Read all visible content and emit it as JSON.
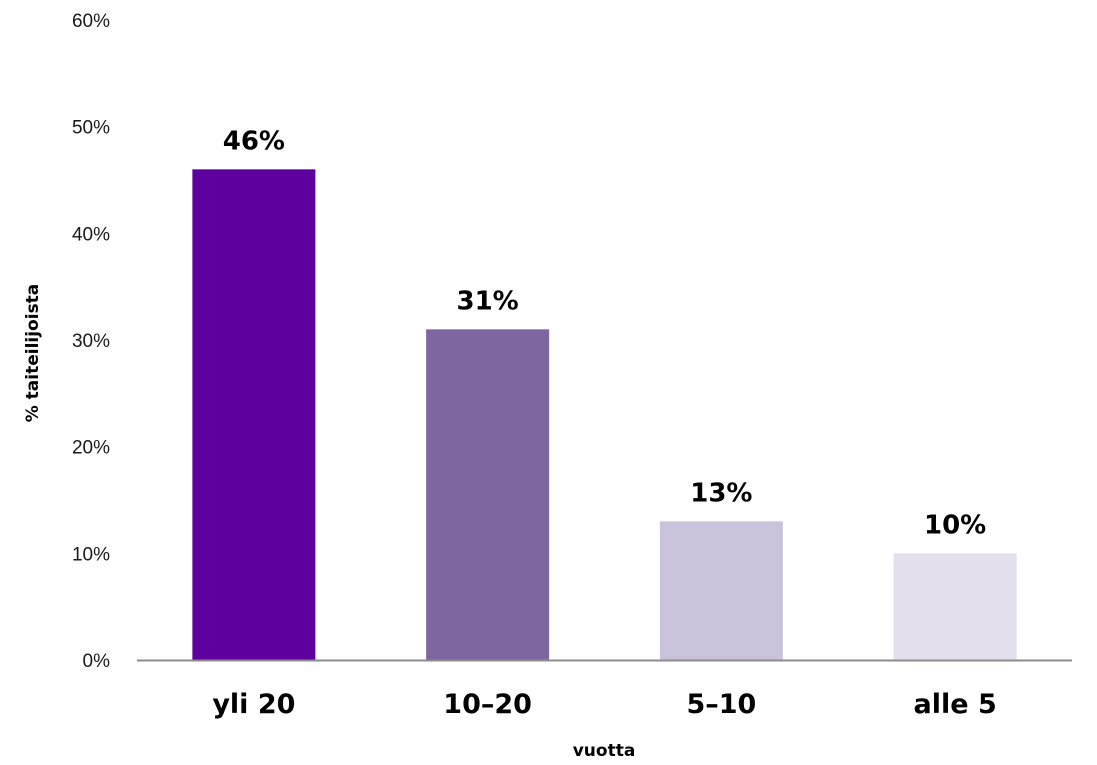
{
  "chart_data": {
    "type": "bar",
    "categories": [
      "yli 20",
      "10–20",
      "5–10",
      "alle 5"
    ],
    "values": [
      46,
      31,
      13,
      10
    ],
    "data_labels": [
      "46%",
      "31%",
      "13%",
      "10%"
    ],
    "colors": [
      "#5e009e",
      "#7e66a0",
      "#cac1db",
      "#e3dfed"
    ],
    "title": "",
    "xlabel": "vuotta",
    "ylabel": "% taiteilijoista",
    "ylim": [
      0,
      60
    ],
    "yticks": [
      0,
      10,
      20,
      30,
      40,
      50,
      60
    ],
    "ytick_labels": [
      "0%",
      "10%",
      "20%",
      "30%",
      "40%",
      "50%",
      "60%"
    ],
    "grid": false,
    "legend": "none",
    "axis_color": "#8c8c8c"
  }
}
